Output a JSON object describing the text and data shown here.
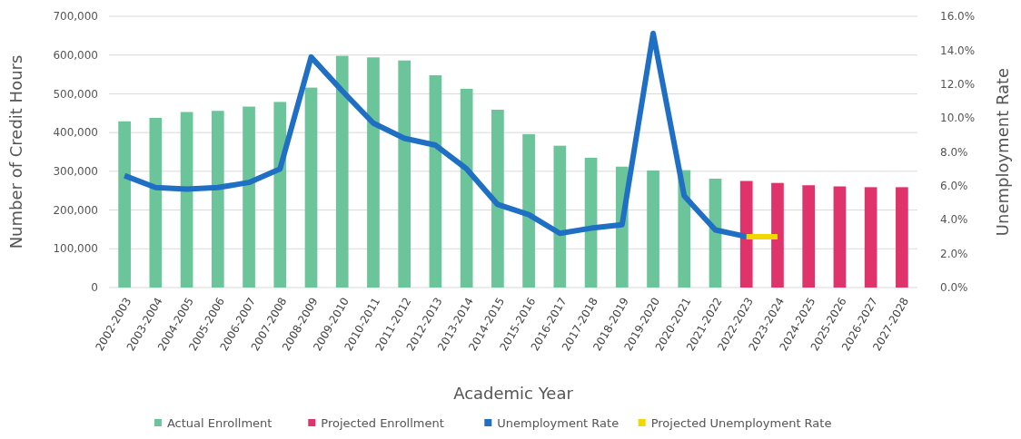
{
  "chart_data": {
    "type": "bar",
    "xlabel": "Academic Year",
    "ylabel": "Number of Credit Hours",
    "y2label": "Unemployment Rate",
    "categories": [
      "2002-2003",
      "2003-2004",
      "2004-2005",
      "2005-2006",
      "2006-2007",
      "2007-2008",
      "2008-2009",
      "2009-2010",
      "2010-2011",
      "2011-2012",
      "2012-2013",
      "2013-2014",
      "2014-2015",
      "2015-2016",
      "2016-2017",
      "2017-2018",
      "2018-2019",
      "2019-2020",
      "2020-2021",
      "2021-2022",
      "2022-2023",
      "2023-2024",
      "2024-2025",
      "2025-2026",
      "2026-2027",
      "2027-2028"
    ],
    "series": [
      {
        "name": "Actual Enrollment",
        "color": "#6cc49a",
        "values": [
          429000,
          438000,
          453000,
          456000,
          467000,
          479000,
          516000,
          598000,
          594000,
          586000,
          548000,
          513000,
          459000,
          396000,
          366000,
          335000,
          312000,
          302000,
          303000,
          281000,
          null,
          null,
          null,
          null,
          null,
          null
        ]
      },
      {
        "name": "Projected Enrollment",
        "color": "#e0336b",
        "values": [
          null,
          null,
          null,
          null,
          null,
          null,
          null,
          null,
          null,
          null,
          null,
          null,
          null,
          null,
          null,
          null,
          null,
          null,
          null,
          null,
          275000,
          270000,
          264000,
          261000,
          259000,
          259000
        ]
      },
      {
        "name": "Unemployment Rate",
        "type": "line",
        "axis": "y2",
        "color": "#1f6fc4",
        "values": [
          6.6,
          5.9,
          5.8,
          5.9,
          6.2,
          7.0,
          13.6,
          11.6,
          9.7,
          8.8,
          8.4,
          7.0,
          4.9,
          4.3,
          3.2,
          3.5,
          3.7,
          15.0,
          5.4,
          3.4,
          3.0,
          null,
          null,
          null,
          null,
          null
        ]
      },
      {
        "name": "Projected Unemployment Rate",
        "type": "line",
        "axis": "y2",
        "color": "#f2d600",
        "values": [
          null,
          null,
          null,
          null,
          null,
          null,
          null,
          null,
          null,
          null,
          null,
          null,
          null,
          null,
          null,
          null,
          null,
          null,
          null,
          null,
          3.0,
          3.0,
          null,
          null,
          null,
          null
        ]
      }
    ],
    "ylim": [
      0,
      700000
    ],
    "yticks": [
      0,
      {
        "value": 100000,
        "label": "100,000"
      },
      {
        "value": 200000,
        "label": "200,000"
      },
      {
        "value": 300000,
        "label": "300,000"
      },
      {
        "value": 400000,
        "label": "400,000"
      },
      {
        "value": 500000,
        "label": "500,000"
      },
      {
        "value": 600000,
        "label": "600,000"
      },
      {
        "value": 700000,
        "label": "700,000"
      }
    ],
    "y2lim": [
      0,
      16
    ],
    "y2ticks": [
      {
        "value": 0,
        "label": "0.0%"
      },
      {
        "value": 2,
        "label": "2.0%"
      },
      {
        "value": 4,
        "label": "4.0%"
      },
      {
        "value": 6,
        "label": "6.0%"
      },
      {
        "value": 8,
        "label": "8.0%"
      },
      {
        "value": 10,
        "label": "10.0%"
      },
      {
        "value": 12,
        "label": "12.0%"
      },
      {
        "value": 14,
        "label": "14.0%"
      },
      {
        "value": 16,
        "label": "16.0%"
      }
    ],
    "grid": "y",
    "legend": "bottom"
  }
}
